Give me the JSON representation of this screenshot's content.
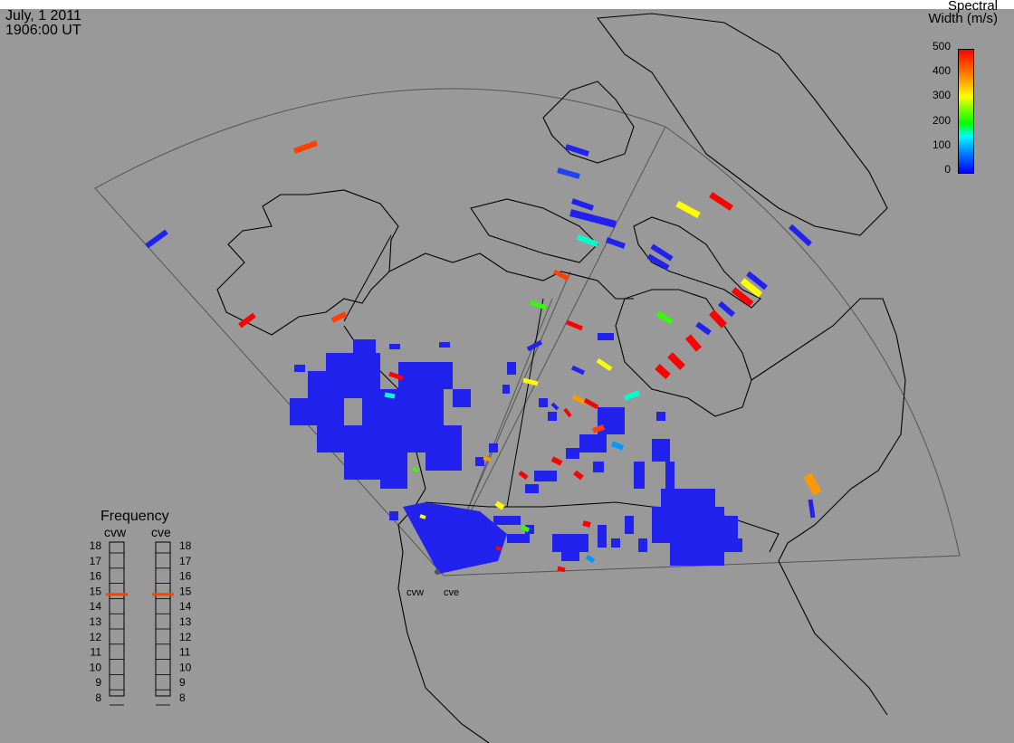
{
  "timestamp": {
    "date": "July, 1 2011",
    "time": "1906:00 UT"
  },
  "colorbar": {
    "title_line1": "Spectral",
    "title_line2": "Width (m/s)",
    "ticks": [
      "500",
      "400",
      "300",
      "200",
      "100",
      "0"
    ],
    "min": 0,
    "max": 500
  },
  "sites": {
    "west": "cvw",
    "east": "cve"
  },
  "frequency_panel": {
    "title": "Frequency",
    "radars": [
      "cvw",
      "cve"
    ],
    "levels": [
      "18",
      "17",
      "16",
      "15",
      "14",
      "13",
      "12",
      "11",
      "10",
      "9",
      "8"
    ],
    "cvw_mhz": 14.8,
    "cve_mhz": 14.8,
    "marker_color": "#ff4000"
  },
  "colors": {
    "background": "#999999",
    "coastline": "#000000",
    "fov": "#555555",
    "scatter_low": "#2222ee"
  },
  "scatter_highlights": [
    {
      "value": 420,
      "color": "#ff4000"
    },
    {
      "value": 40,
      "color": "#2244ee"
    },
    {
      "value": 480,
      "color": "#ff0000"
    },
    {
      "value": 280,
      "color": "#ffff00"
    },
    {
      "value": 360,
      "color": "#ff9900"
    },
    {
      "value": 220,
      "color": "#33ff00"
    },
    {
      "value": 150,
      "color": "#00ffcc"
    },
    {
      "value": 90,
      "color": "#0099ff"
    }
  ]
}
